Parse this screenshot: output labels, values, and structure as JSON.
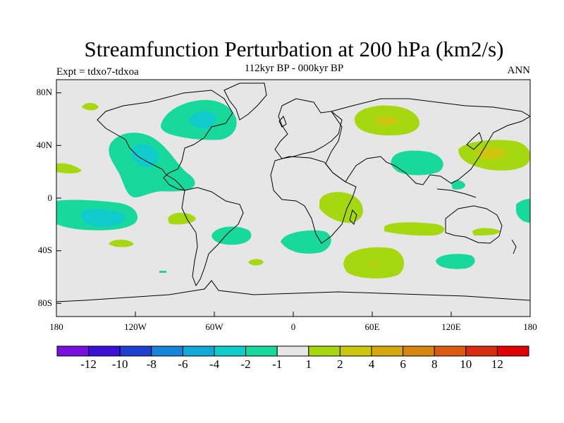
{
  "title": "Streamfunction Perturbation at 200 hPa (km2/s)",
  "subtitle": "112kyr BP - 000kyr BP",
  "left_label": "Expt = tdxo7-tdxoa",
  "right_label": "ANN",
  "lat_ticks": [
    "80N",
    "40N",
    "0",
    "40S",
    "80S"
  ],
  "lon_ticks": [
    "180",
    "120W",
    "60W",
    "0",
    "60E",
    "120E",
    "180"
  ],
  "colorbar": {
    "colors": [
      "#7b0fe0",
      "#3a10d6",
      "#1e3fd2",
      "#1583d9",
      "#12a9d8",
      "#10cbcb",
      "#16d99b",
      "#e6e6e6",
      "#a6d810",
      "#cbc70f",
      "#d6a810",
      "#d88510",
      "#d95a10",
      "#d82c10",
      "#e10000"
    ],
    "labels": [
      "-12",
      "-10",
      "-8",
      "-6",
      "-4",
      "-2",
      "-1",
      "1",
      "2",
      "4",
      "6",
      "8",
      "10",
      "12"
    ]
  },
  "fields": [
    {
      "name": "north-atlantic",
      "level": "-2",
      "color": "#16d99b"
    },
    {
      "name": "north-atlantic-core",
      "level": "-4",
      "color": "#10cbcb"
    },
    {
      "name": "north-pacific-east",
      "level": "-2",
      "color": "#16d99b"
    },
    {
      "name": "north-pacific-east-core",
      "level": "-4",
      "color": "#10cbcb"
    },
    {
      "name": "south-pacific",
      "level": "-2",
      "color": "#16d99b"
    },
    {
      "name": "south-pacific-core",
      "level": "-4",
      "color": "#10cbcb"
    },
    {
      "name": "south-atlantic",
      "level": "-2",
      "color": "#16d99b"
    },
    {
      "name": "central-asia",
      "level": "-2",
      "color": "#16d99b"
    },
    {
      "name": "siberia",
      "level": "2",
      "color": "#a6d810"
    },
    {
      "name": "siberia-core",
      "level": "4",
      "color": "#cbc70f"
    },
    {
      "name": "west-pacific",
      "level": "2",
      "color": "#a6d810"
    },
    {
      "name": "west-pacific-core",
      "level": "4",
      "color": "#cbc70f"
    },
    {
      "name": "southern-indian-ocean",
      "level": "-2",
      "color": "#16d99b"
    },
    {
      "name": "southern-indian-ocean-core",
      "level": "2",
      "color": "#a6d810"
    },
    {
      "name": "east-africa",
      "level": "2",
      "color": "#a6d810"
    }
  ]
}
